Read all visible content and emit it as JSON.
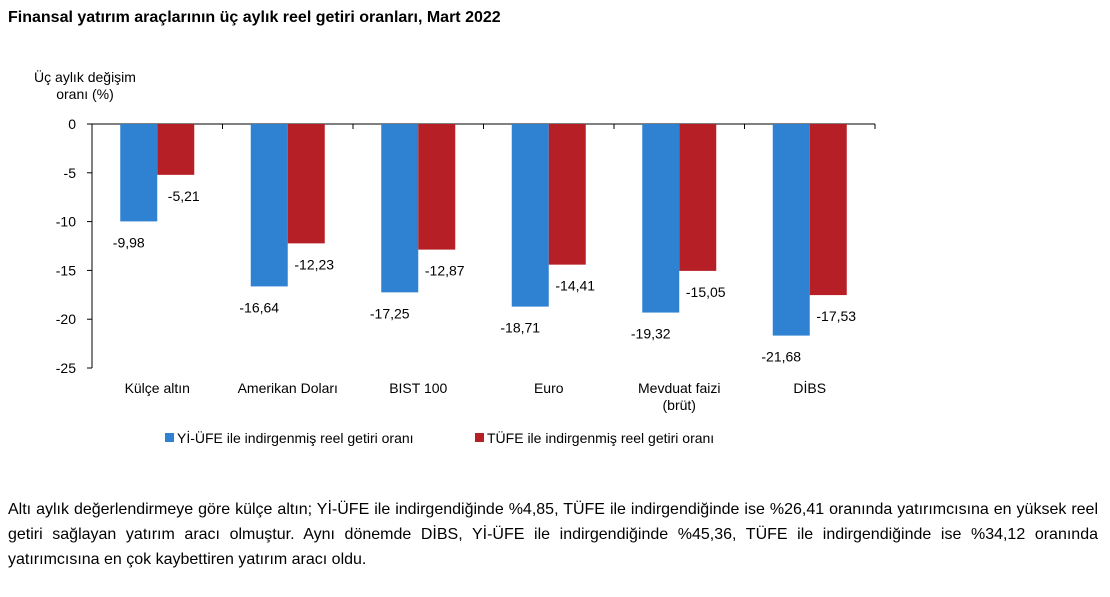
{
  "title": "Finansal yatırım araçlarının üç aylık reel getiri oranları, Mart 2022",
  "paragraph": "Altı aylık değerlendirmeye göre külçe altın; Yİ-ÜFE ile indirgendiğinde %4,85, TÜFE ile indirgendiğinde ise %26,41 oranında yatırımcısına en yüksek reel getiri sağlayan yatırım aracı olmuştur. Aynı dönemde DİBS, Yİ-ÜFE ile indirgendiğinde %45,36, TÜFE ile indirgendiğinde ise %34,12 oranında yatırımcısına en çok kaybettiren yatırım aracı oldu.",
  "chart_data": {
    "type": "bar",
    "ylabel": [
      "Üç aylık değişim",
      "oranı (%)"
    ],
    "ylim": [
      -25,
      0
    ],
    "yticks": [
      0,
      -5,
      -10,
      -15,
      -20,
      -25
    ],
    "grid": false,
    "legend_position": "bottom",
    "categories": [
      [
        "Külçe altın"
      ],
      [
        "Amerikan Doları"
      ],
      [
        "BIST 100"
      ],
      [
        "Euro"
      ],
      [
        "Mevduat faizi",
        "(brüt)"
      ],
      [
        "DİBS"
      ]
    ],
    "series": [
      {
        "name": "Yİ-ÜFE ile indirgenmiş reel getiri oranı",
        "color": "#2e82d1",
        "values": [
          -9.98,
          -16.64,
          -17.25,
          -18.71,
          -19.32,
          -21.68
        ],
        "labels": [
          "-9,98",
          "-16,64",
          "-17,25",
          "-18,71",
          "-19,32",
          "-21,68"
        ]
      },
      {
        "name": "TÜFE ile indirgenmiş reel getiri oranı",
        "color": "#b51f25",
        "values": [
          -5.21,
          -12.23,
          -12.87,
          -14.41,
          -15.05,
          -17.53
        ],
        "labels": [
          "-5,21",
          "-12,23",
          "-12,87",
          "-14,41",
          "-15,05",
          "-17,53"
        ]
      }
    ]
  }
}
